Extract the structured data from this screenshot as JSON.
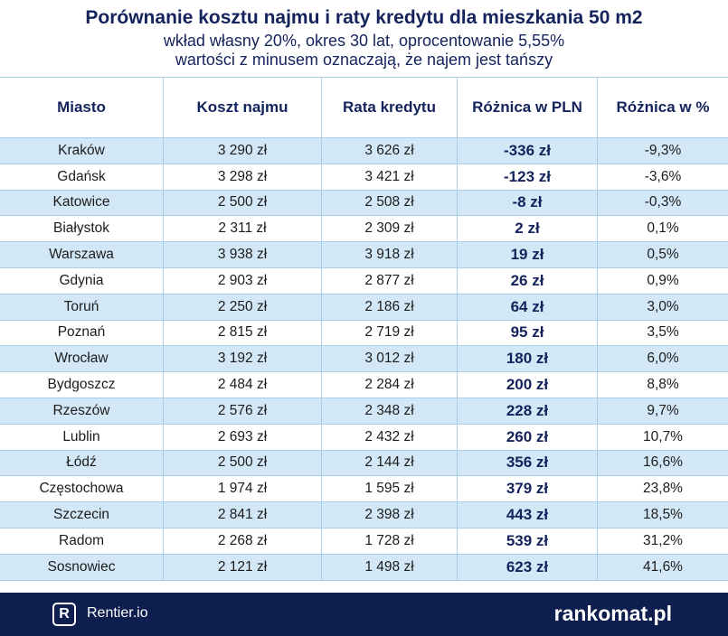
{
  "header": {
    "title": "Porównanie kosztu najmu i raty kredytu dla mieszkania 50 m2",
    "subtitle": [
      "wkład własny 20%, okres 30 lat, oprocentowanie 5,55%",
      "wartości z minusem oznaczają, że najem jest tańszy"
    ]
  },
  "table": {
    "columns": [
      "Miasto",
      "Koszt najmu",
      "Rata kredytu",
      "Różnica w PLN",
      "Różnica w %"
    ],
    "rows": [
      [
        "Kraków",
        "3 290 zł",
        "3 626 zł",
        "-336 zł",
        "-9,3%"
      ],
      [
        "Gdańsk",
        "3 298 zł",
        "3 421 zł",
        "-123 zł",
        "-3,6%"
      ],
      [
        "Katowice",
        "2 500 zł",
        "2 508 zł",
        "-8 zł",
        "-0,3%"
      ],
      [
        "Białystok",
        "2 311 zł",
        "2 309 zł",
        "2 zł",
        "0,1%"
      ],
      [
        "Warszawa",
        "3 938 zł",
        "3 918 zł",
        "19 zł",
        "0,5%"
      ],
      [
        "Gdynia",
        "2 903 zł",
        "2 877 zł",
        "26 zł",
        "0,9%"
      ],
      [
        "Toruń",
        "2 250 zł",
        "2 186 zł",
        "64 zł",
        "3,0%"
      ],
      [
        "Poznań",
        "2 815 zł",
        "2 719 zł",
        "95 zł",
        "3,5%"
      ],
      [
        "Wrocław",
        "3 192 zł",
        "3 012 zł",
        "180 zł",
        "6,0%"
      ],
      [
        "Bydgoszcz",
        "2 484 zł",
        "2 284 zł",
        "200 zł",
        "8,8%"
      ],
      [
        "Rzeszów",
        "2 576 zł",
        "2 348 zł",
        "228 zł",
        "9,7%"
      ],
      [
        "Lublin",
        "2 693 zł",
        "2 432 zł",
        "260 zł",
        "10,7%"
      ],
      [
        "Łódź",
        "2 500 zł",
        "2 144 zł",
        "356 zł",
        "16,6%"
      ],
      [
        "Częstochowa",
        "1 974 zł",
        "1 595 zł",
        "379 zł",
        "23,8%"
      ],
      [
        "Szczecin",
        "2 841 zł",
        "2 398 zł",
        "443 zł",
        "18,5%"
      ],
      [
        "Radom",
        "2 268 zł",
        "1 728 zł",
        "539 zł",
        "31,2%"
      ],
      [
        "Sosnowiec",
        "2 121 zł",
        "1 498 zł",
        "623 zł",
        "41,6%"
      ]
    ]
  },
  "footer": {
    "left": "Rentier.io",
    "right": "rankomat.pl"
  }
}
